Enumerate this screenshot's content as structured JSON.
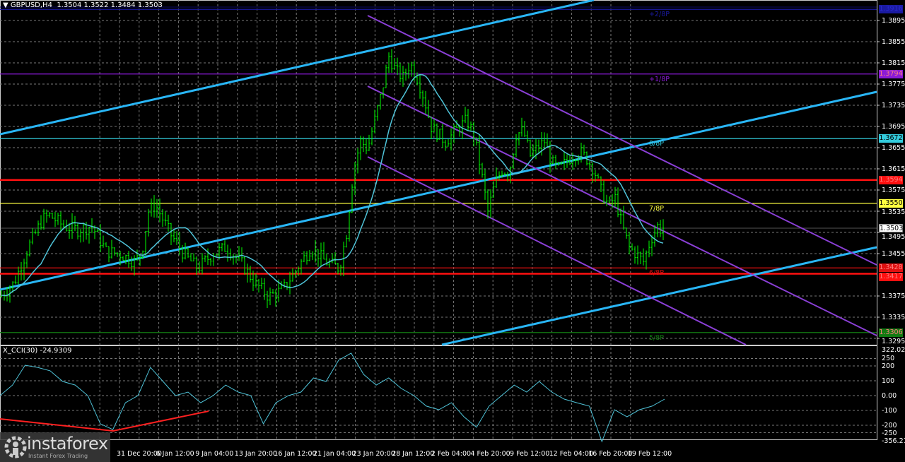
{
  "header": {
    "symbol": "GBPUSD,H4",
    "ohlc": "1.3504 1.3522 1.3484 1.3503"
  },
  "indicator": {
    "title": "X_CCI(30) -24.9309",
    "max_label": "322.0224",
    "min_label": "-356.214",
    "levels": [
      "250",
      "200",
      "100",
      "0.00",
      "-100",
      "-200",
      "-250"
    ]
  },
  "price_axis": [
    "1.3895",
    "1.3855",
    "1.3815",
    "1.3775",
    "1.3735",
    "1.3695",
    "1.3655",
    "1.3615",
    "1.3575",
    "1.3535",
    "1.3495",
    "1.3455",
    "1.3375",
    "1.3335",
    "1.3295"
  ],
  "levels": [
    {
      "price": 1.3916,
      "tag": "1.3916",
      "label": "+2/8P",
      "color": "#1a1aa0"
    },
    {
      "price": 1.3794,
      "tag": "1.3794",
      "label": "+1/8P",
      "color": "#8a1ad6"
    },
    {
      "price": 1.3672,
      "tag": "1.3672",
      "label": "8/8P",
      "color": "#33ccdd"
    },
    {
      "price": 1.3594,
      "tag": "1.3594",
      "label": "",
      "color": "#ff1010"
    },
    {
      "price": 1.355,
      "tag": "1.3550",
      "label": "7/8P",
      "color": "#ffff40"
    },
    {
      "price": 1.3428,
      "tag": "1.3428",
      "label": "6/8P",
      "color": "#e01010"
    },
    {
      "price": 1.3417,
      "tag": "1.3417",
      "label": "",
      "color": "#ff1010"
    },
    {
      "price": 1.3306,
      "tag": "1.3306",
      "label": "5/8P",
      "color": "#127a12"
    }
  ],
  "current_price": "1.3503",
  "time_axis": [
    "31 Dec 20:00",
    "6 Jan 12:00",
    "9 Jan 04:00",
    "13 Jan 20:00",
    "16 Jan 12:00",
    "21 Jan 04:00",
    "23 Jan 20:00",
    "28 Jan 12:00",
    "2 Feb 04:00",
    "4 Feb 20:00",
    "9 Feb 12:00",
    "12 Feb 04:00",
    "16 Feb 20:00",
    "19 Feb 12:00"
  ],
  "chart_data": {
    "type": "line",
    "ylim": [
      1.3295,
      1.3915
    ],
    "closes": [
      1.3374,
      1.34,
      1.3467,
      1.352,
      1.3527,
      1.3507,
      1.35,
      1.3507,
      1.346,
      1.3454,
      1.344,
      1.3454,
      1.3534,
      1.3547,
      1.3494,
      1.3454,
      1.3427,
      1.3454,
      1.3467,
      1.344,
      1.34,
      1.3374,
      1.3387,
      1.3427,
      1.3467,
      1.344,
      1.3427,
      1.3494,
      1.3614,
      1.3667,
      1.3654,
      1.3707,
      1.376,
      1.3827,
      1.38,
      1.3787,
      1.3814,
      1.3787,
      1.3747,
      1.3694,
      1.368,
      1.3667,
      1.368,
      1.3694,
      1.3707,
      1.368,
      1.3614,
      1.3534,
      1.3587,
      1.3614,
      1.3607,
      1.368,
      1.3687,
      1.364,
      1.3654,
      1.3667,
      1.3627,
      1.3614,
      1.3627,
      1.364,
      1.3647,
      1.3634,
      1.3614,
      1.3574,
      1.3547,
      1.356,
      1.3507,
      1.3467,
      1.3454,
      1.344,
      1.348,
      1.3507,
      1.3494
    ],
    "cci": [
      0,
      71,
      205,
      190,
      167,
      95,
      71,
      0,
      -190,
      -229,
      -48,
      0,
      190,
      95,
      0,
      24,
      -48,
      0,
      71,
      24,
      0,
      -190,
      -48,
      0,
      24,
      119,
      95,
      238,
      286,
      143,
      71,
      119,
      48,
      0,
      -71,
      -95,
      -48,
      -143,
      -214,
      -71,
      0,
      71,
      24,
      95,
      24,
      -24,
      -48,
      -71,
      -310,
      -95,
      -143,
      -95,
      -71,
      -24
    ],
    "cci_ylim": [
      -356.214,
      322.0224
    ]
  },
  "logo": {
    "name": "instaforex",
    "tagline": "Instant Forex Trading"
  }
}
